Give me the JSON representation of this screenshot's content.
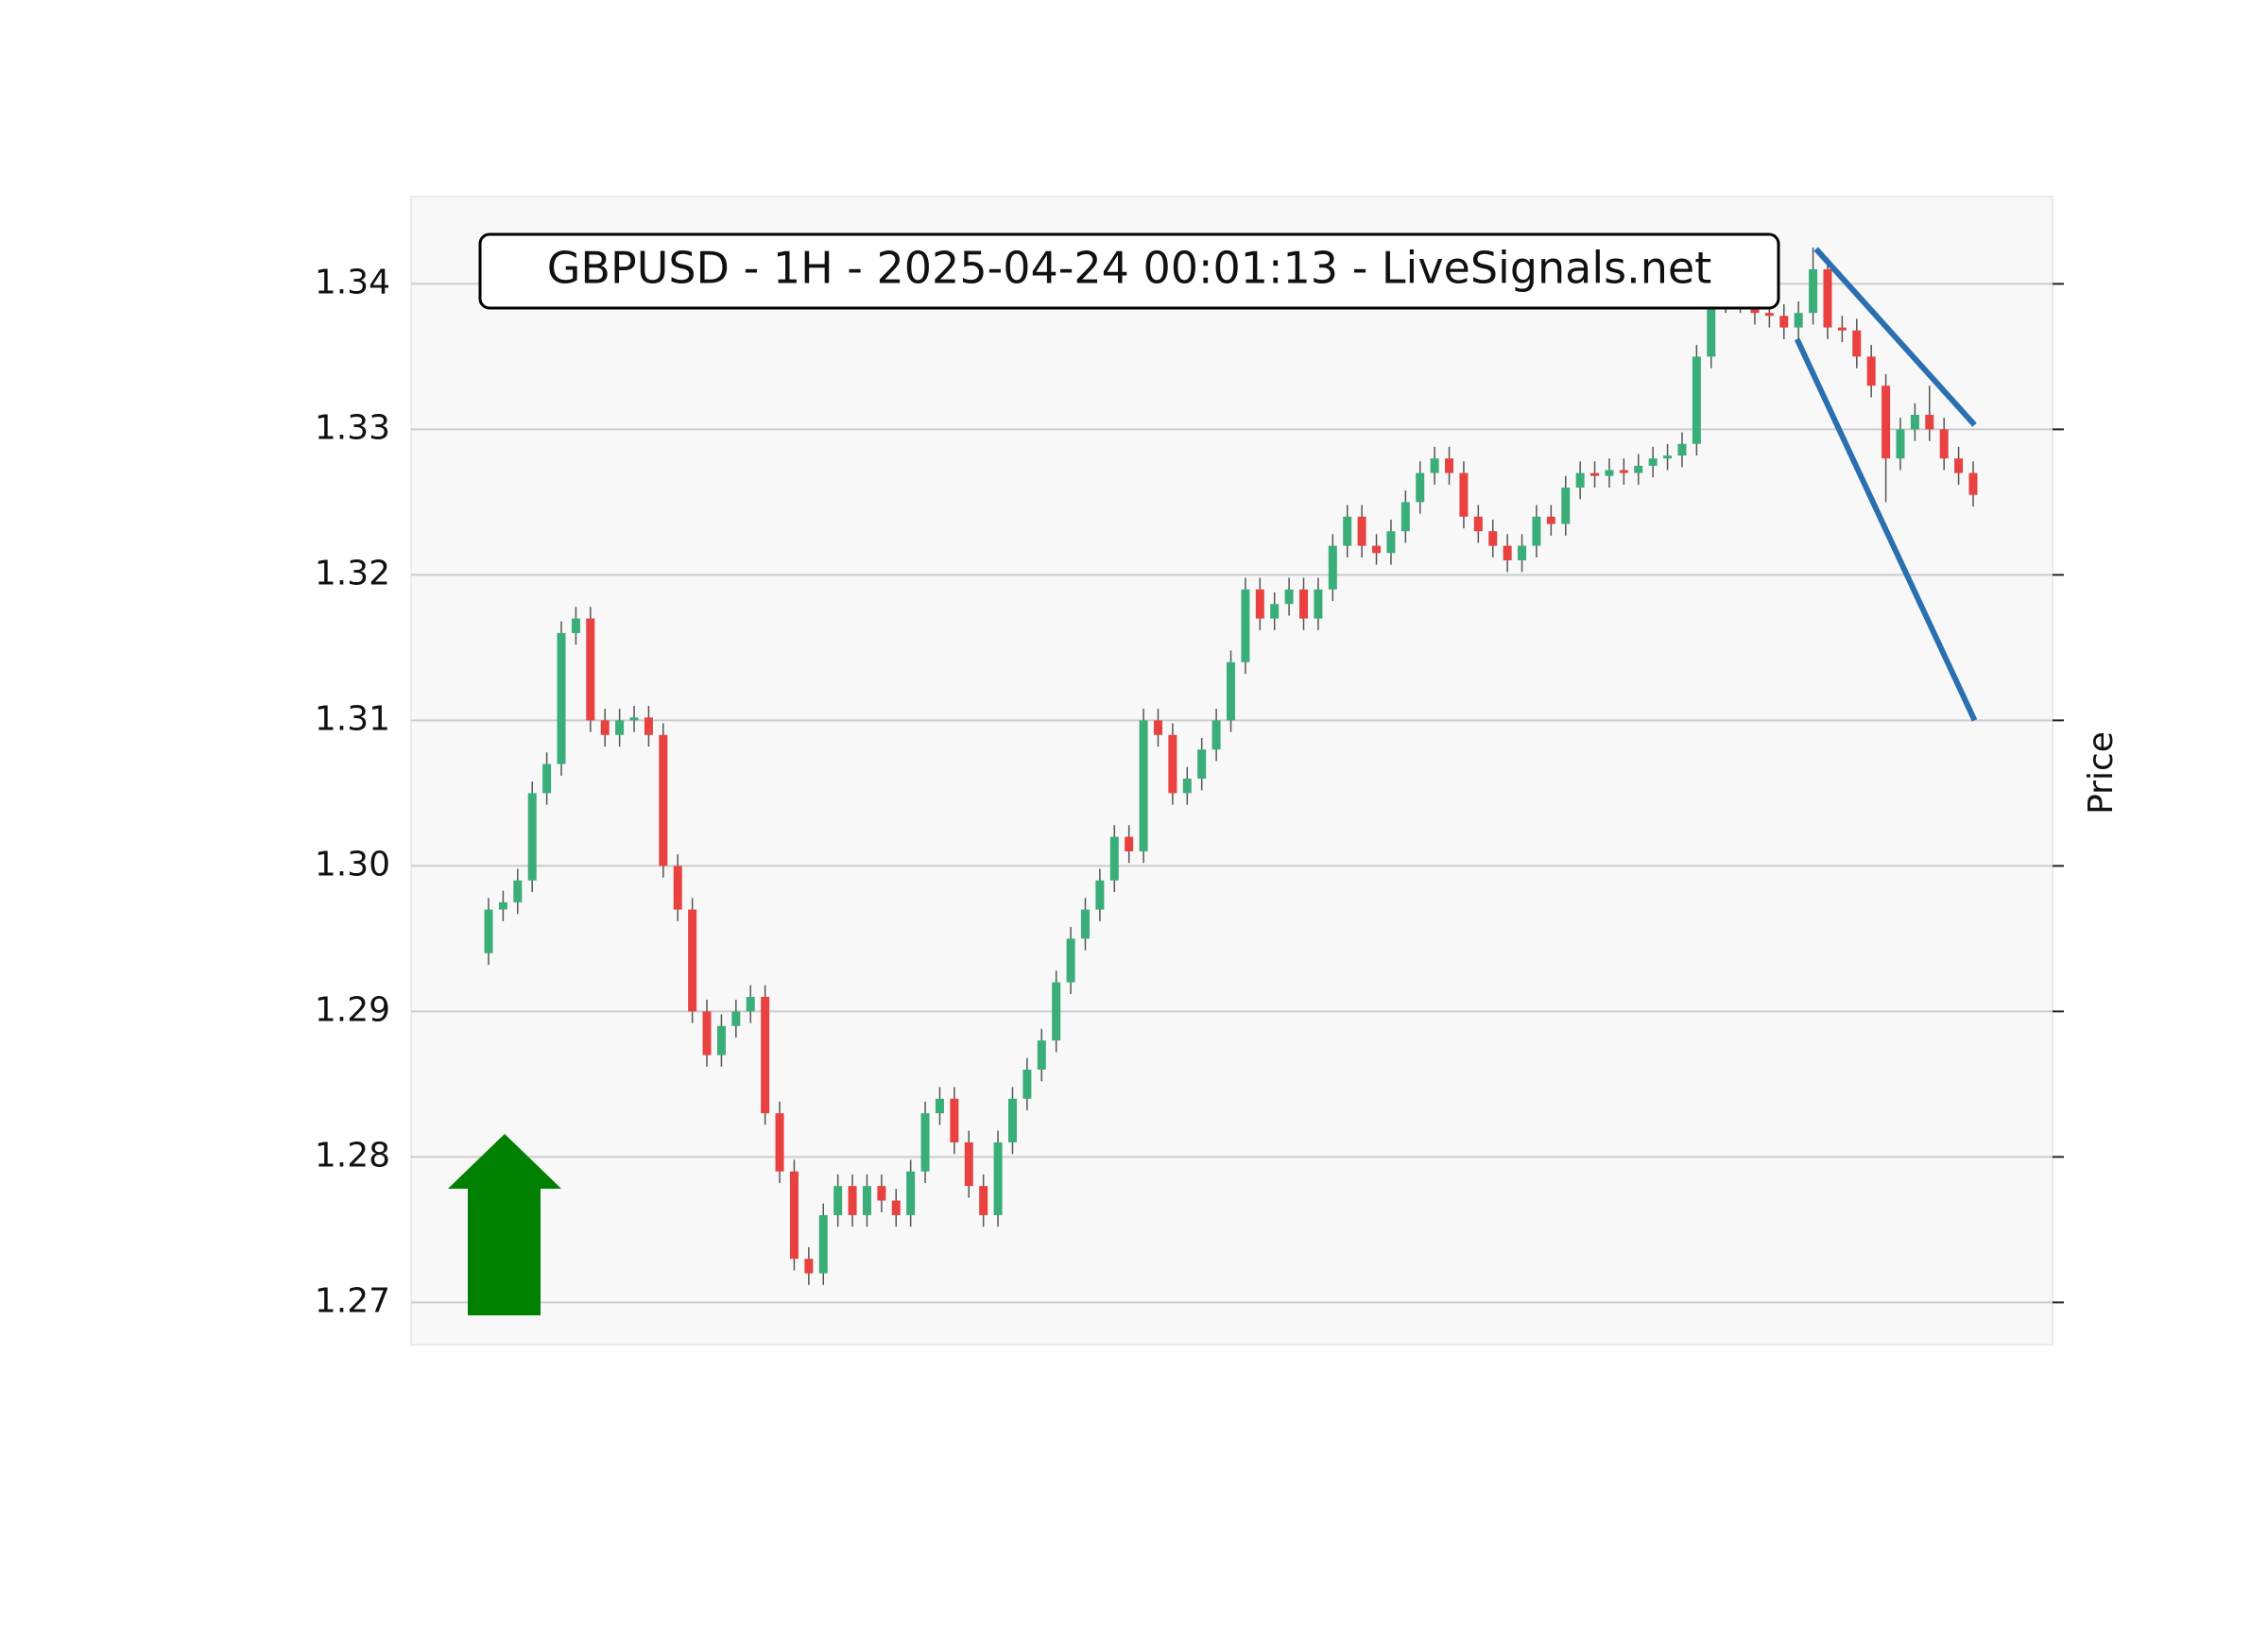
{
  "chart_data": {
    "type": "candlestick",
    "title": "GBPUSD - 1H - 2025-04-24 00:01:13 - LiveSignals.net",
    "ylabel": "Price",
    "ylim": [
      1.2671,
      1.346
    ],
    "yticks": [
      1.27,
      1.28,
      1.29,
      {
        "value": 1.3,
        "label": "1.30"
      },
      1.31,
      1.32,
      1.33,
      1.34
    ],
    "grid": true,
    "up_color": "#3aae78",
    "down_color": "#e8413f",
    "open": [
      1.294,
      1.297,
      1.2975,
      1.299,
      1.305,
      1.307,
      1.316,
      1.317,
      1.31,
      1.309,
      1.31,
      1.3102,
      1.309,
      1.3,
      1.297,
      1.29,
      1.287,
      1.289,
      1.29,
      1.291,
      1.283,
      1.279,
      1.273,
      1.272,
      1.276,
      1.278,
      1.276,
      1.278,
      1.277,
      1.276,
      1.279,
      1.283,
      1.284,
      1.281,
      1.278,
      1.276,
      1.281,
      1.284,
      1.286,
      1.288,
      1.292,
      1.295,
      1.297,
      1.299,
      1.302,
      1.301,
      1.31,
      1.309,
      1.305,
      1.306,
      1.308,
      1.31,
      1.314,
      1.319,
      1.317,
      1.318,
      1.319,
      1.317,
      1.319,
      1.322,
      1.324,
      1.322,
      1.3215,
      1.323,
      1.325,
      1.327,
      1.328,
      1.327,
      1.324,
      1.323,
      1.322,
      1.321,
      1.322,
      1.324,
      1.3235,
      1.326,
      1.327,
      1.3268,
      1.3272,
      1.327,
      1.3275,
      1.328,
      1.3282,
      1.329,
      1.335,
      1.339,
      1.3388,
      1.3392,
      1.338,
      1.3378,
      1.337,
      1.338,
      1.341,
      1.337,
      1.3368,
      1.335,
      1.333,
      1.328,
      1.33,
      1.331,
      1.33,
      1.328,
      1.327
    ],
    "high": [
      1.2978,
      1.2983,
      1.2998,
      1.3058,
      1.3078,
      1.3168,
      1.3178,
      1.3178,
      1.3108,
      1.3108,
      1.311,
      1.311,
      1.3098,
      1.3008,
      1.2978,
      1.2908,
      1.2898,
      1.2908,
      1.2918,
      1.2918,
      1.2838,
      1.2798,
      1.2738,
      1.2768,
      1.2788,
      1.2788,
      1.2788,
      1.2788,
      1.2778,
      1.2798,
      1.2838,
      1.2848,
      1.2848,
      1.2818,
      1.2788,
      1.2818,
      1.2848,
      1.2868,
      1.2888,
      1.2928,
      1.2958,
      1.2978,
      1.2998,
      1.3028,
      1.3028,
      1.3108,
      1.3108,
      1.3098,
      1.3068,
      1.3088,
      1.3108,
      1.3148,
      1.3198,
      1.3198,
      1.3188,
      1.3198,
      1.3198,
      1.3198,
      1.3228,
      1.3248,
      1.3248,
      1.3228,
      1.3238,
      1.3258,
      1.3278,
      1.3288,
      1.3288,
      1.3278,
      1.3248,
      1.3238,
      1.3228,
      1.3228,
      1.3248,
      1.3248,
      1.3268,
      1.3278,
      1.3278,
      1.328,
      1.328,
      1.3283,
      1.3288,
      1.329,
      1.3298,
      1.3358,
      1.3398,
      1.3398,
      1.34,
      1.34,
      1.3388,
      1.3386,
      1.3388,
      1.3425,
      1.3418,
      1.3378,
      1.3376,
      1.3358,
      1.3338,
      1.3308,
      1.3318,
      1.333,
      1.3308,
      1.3288,
      1.3278
    ],
    "low": [
      1.2932,
      1.2962,
      1.2967,
      1.2982,
      1.3042,
      1.3062,
      1.3152,
      1.3092,
      1.3082,
      1.3082,
      1.3092,
      1.3082,
      1.2992,
      1.2962,
      1.2892,
      1.2862,
      1.2862,
      1.2882,
      1.2892,
      1.2822,
      1.2782,
      1.2722,
      1.2712,
      1.2712,
      1.2752,
      1.2752,
      1.2752,
      1.2762,
      1.2752,
      1.2752,
      1.2782,
      1.2822,
      1.2802,
      1.2772,
      1.2752,
      1.2752,
      1.2802,
      1.2832,
      1.2852,
      1.2872,
      1.2912,
      1.2942,
      1.2962,
      1.2982,
      1.3002,
      1.3002,
      1.3082,
      1.3042,
      1.3042,
      1.3052,
      1.3072,
      1.3092,
      1.3132,
      1.3162,
      1.3162,
      1.3172,
      1.3162,
      1.3162,
      1.3182,
      1.3212,
      1.3212,
      1.3207,
      1.3207,
      1.3222,
      1.3242,
      1.3262,
      1.3262,
      1.3232,
      1.3222,
      1.3212,
      1.3202,
      1.3202,
      1.3212,
      1.3227,
      1.3227,
      1.3252,
      1.326,
      1.326,
      1.3262,
      1.3262,
      1.3267,
      1.3272,
      1.3274,
      1.3282,
      1.3342,
      1.338,
      1.338,
      1.3372,
      1.337,
      1.3362,
      1.3362,
      1.3372,
      1.3362,
      1.336,
      1.3342,
      1.3322,
      1.325,
      1.3272,
      1.3292,
      1.3292,
      1.3272,
      1.3262,
      1.3247
    ],
    "close": [
      1.297,
      1.2975,
      1.299,
      1.305,
      1.307,
      1.316,
      1.317,
      1.31,
      1.309,
      1.31,
      1.3102,
      1.309,
      1.3,
      1.297,
      1.29,
      1.287,
      1.289,
      1.29,
      1.291,
      1.283,
      1.279,
      1.273,
      1.272,
      1.276,
      1.278,
      1.276,
      1.278,
      1.277,
      1.276,
      1.279,
      1.283,
      1.284,
      1.281,
      1.278,
      1.276,
      1.281,
      1.284,
      1.286,
      1.288,
      1.292,
      1.295,
      1.297,
      1.299,
      1.302,
      1.301,
      1.31,
      1.309,
      1.305,
      1.306,
      1.308,
      1.31,
      1.314,
      1.319,
      1.317,
      1.318,
      1.319,
      1.317,
      1.319,
      1.322,
      1.324,
      1.322,
      1.3215,
      1.323,
      1.325,
      1.327,
      1.328,
      1.327,
      1.324,
      1.323,
      1.322,
      1.321,
      1.322,
      1.324,
      1.3235,
      1.326,
      1.327,
      1.3268,
      1.3272,
      1.327,
      1.3275,
      1.328,
      1.3282,
      1.329,
      1.335,
      1.339,
      1.3388,
      1.3392,
      1.338,
      1.3378,
      1.337,
      1.338,
      1.341,
      1.337,
      1.3368,
      1.335,
      1.333,
      1.328,
      1.33,
      1.331,
      1.33,
      1.328,
      1.327,
      1.3255
    ],
    "trend_lines": [
      {
        "color": "#2a6fb0",
        "x": [
          91.2,
          102.1
        ],
        "y": [
          1.3424,
          1.3303
        ]
      },
      {
        "color": "#2a6fb0",
        "x": [
          89.9,
          102.1
        ],
        "y": [
          1.3362,
          1.31
        ]
      }
    ]
  }
}
